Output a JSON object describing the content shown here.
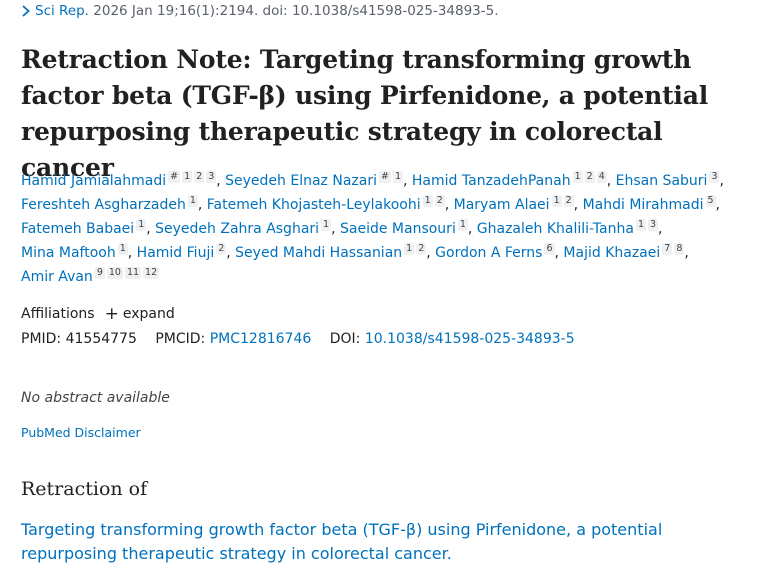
{
  "citation": {
    "journal": "Sci Rep.",
    "details": "2026 Jan 19;16(1):2194. doi: 10.1038/s41598-025-34893-5."
  },
  "title": "Retraction Note: Targeting transforming growth factor beta (TGF-β) using Pirfenidone, a potential repurposing therapeutic strategy in colorectal cancer",
  "authors": [
    {
      "name": "Hamid Jamialahmadi",
      "sups": [
        "#",
        "1",
        "2",
        "3"
      ]
    },
    {
      "name": "Seyedeh Elnaz Nazari",
      "sups": [
        "#",
        "1"
      ]
    },
    {
      "name": "Hamid TanzadehPanah",
      "sups": [
        "1",
        "2",
        "4"
      ]
    },
    {
      "name": "Ehsan Saburi",
      "sups": [
        "3"
      ]
    },
    {
      "name": "Fereshteh Asgharzadeh",
      "sups": [
        "1"
      ]
    },
    {
      "name": "Fatemeh Khojasteh-Leylakoohi",
      "sups": [
        "1",
        "2"
      ]
    },
    {
      "name": "Maryam Alaei",
      "sups": [
        "1",
        "2"
      ]
    },
    {
      "name": "Mahdi Mirahmadi",
      "sups": [
        "5"
      ]
    },
    {
      "name": "Fatemeh Babaei",
      "sups": [
        "1"
      ]
    },
    {
      "name": "Seyedeh Zahra Asghari",
      "sups": [
        "1"
      ]
    },
    {
      "name": "Saeide Mansouri",
      "sups": [
        "1"
      ]
    },
    {
      "name": "Ghazaleh Khalili-Tanha",
      "sups": [
        "1",
        "3"
      ]
    },
    {
      "name": "Mina Maftooh",
      "sups": [
        "1"
      ]
    },
    {
      "name": "Hamid Fiuji",
      "sups": [
        "2"
      ]
    },
    {
      "name": "Seyed Mahdi Hassanian",
      "sups": [
        "1",
        "2"
      ]
    },
    {
      "name": "Gordon A Ferns",
      "sups": [
        "6"
      ]
    },
    {
      "name": "Majid Khazaei",
      "sups": [
        "7",
        "8"
      ]
    },
    {
      "name": "Amir Avan",
      "sups": [
        "9",
        "10",
        "11",
        "12"
      ]
    }
  ],
  "affiliations": {
    "label": "Affiliations",
    "expand_label": "expand"
  },
  "ids": {
    "pmid_label": "PMID:",
    "pmid": "41554775",
    "pmcid_label": "PMCID:",
    "pmcid": "PMC12816746",
    "doi_label": "DOI:",
    "doi": "10.1038/s41598-025-34893-5"
  },
  "no_abstract": "No abstract available",
  "disclaimer": "PubMed Disclaimer",
  "retraction": {
    "heading": "Retraction of",
    "link_text": "Targeting transforming growth factor beta (TGF-β) using Pirfenidone, a potential repurposing therapeutic strategy in colorectal cancer."
  },
  "icons": {
    "citation_chevron": "chevron-right-icon",
    "expand": "plus-icon"
  }
}
